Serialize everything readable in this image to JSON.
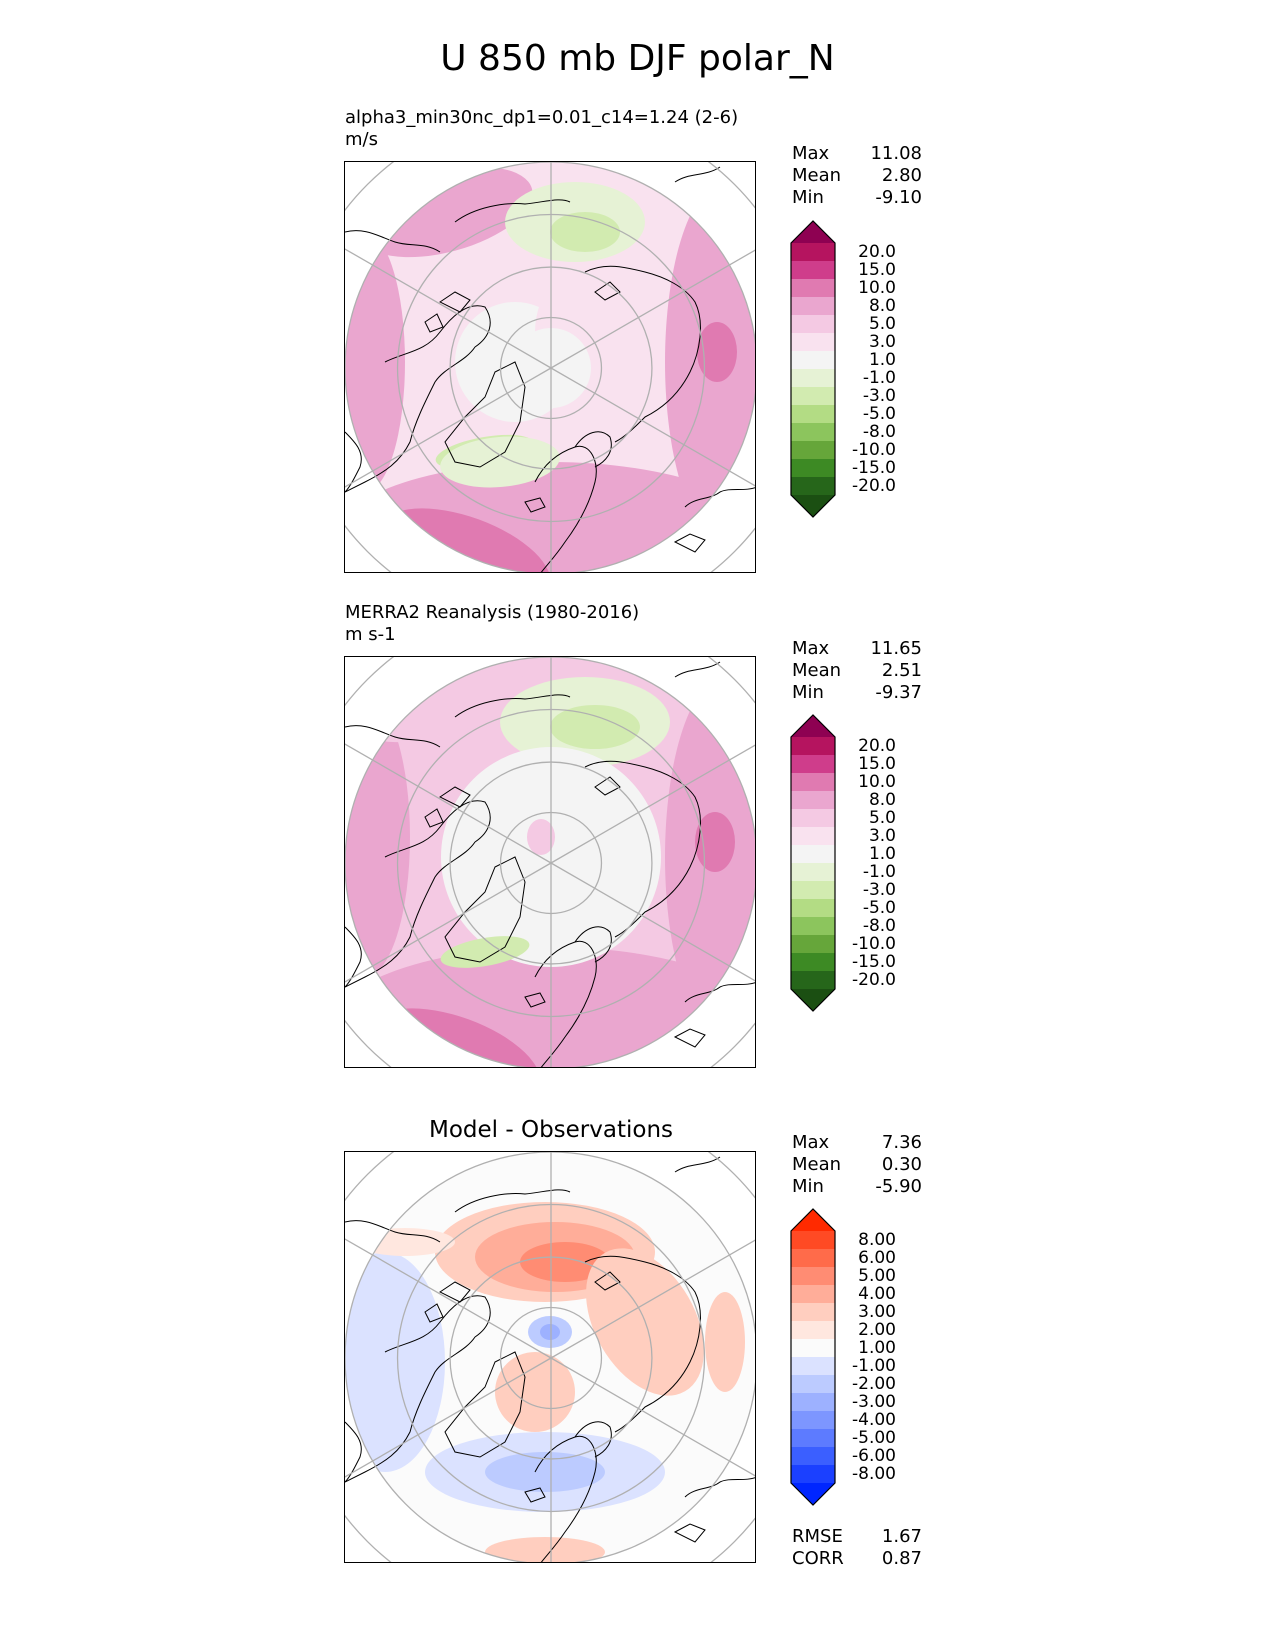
{
  "page": {
    "title": "U 850 mb DJF polar_N"
  },
  "panels": [
    {
      "id": "model",
      "label": "alpha3_min30nc_dp1=0.01_c14=1.24 (2-6)",
      "units": "m/s",
      "stats": {
        "max_label": "Max",
        "max": "11.08",
        "mean_label": "Mean",
        "mean": "2.80",
        "min_label": "Min",
        "min": "-9.10"
      },
      "colorbar_labels": [
        "20.0",
        "15.0",
        "10.0",
        "8.0",
        "5.0",
        "3.0",
        "1.0",
        "-1.0",
        "-3.0",
        "-5.0",
        "-8.0",
        "-10.0",
        "-15.0",
        "-20.0"
      ]
    },
    {
      "id": "obs",
      "label": "MERRA2 Reanalysis (1980-2016)",
      "units": "m s-1",
      "stats": {
        "max_label": "Max",
        "max": "11.65",
        "mean_label": "Mean",
        "mean": "2.51",
        "min_label": "Min",
        "min": "-9.37"
      },
      "colorbar_labels": [
        "20.0",
        "15.0",
        "10.0",
        "8.0",
        "5.0",
        "3.0",
        "1.0",
        "-1.0",
        "-3.0",
        "-5.0",
        "-8.0",
        "-10.0",
        "-15.0",
        "-20.0"
      ]
    },
    {
      "id": "diff",
      "title": "Model - Observations",
      "stats": {
        "max_label": "Max",
        "max": "7.36",
        "mean_label": "Mean",
        "mean": "0.30",
        "min_label": "Min",
        "min": "-5.90"
      },
      "colorbar_labels": [
        "8.00",
        "6.00",
        "5.00",
        "4.00",
        "3.00",
        "2.00",
        "1.00",
        "-1.00",
        "-2.00",
        "-3.00",
        "-4.00",
        "-5.00",
        "-6.00",
        "-8.00"
      ],
      "rmse_label": "RMSE",
      "rmse": "1.67",
      "corr_label": "CORR",
      "corr": "0.87"
    }
  ],
  "colors": {
    "piyg": [
      "#8e0152",
      "#b5145f",
      "#cf3d8b",
      "#e07ab1",
      "#eaa6cf",
      "#f4c9e3",
      "#f9e2ef",
      "#f4f4f4",
      "#e6f2d5",
      "#d2ebb0",
      "#b3dc84",
      "#8cc55d",
      "#66a63a",
      "#3d8a24",
      "#26661a",
      "#1b4f12"
    ],
    "diff": [
      "#ff2a00",
      "#ff4a24",
      "#ff6b4a",
      "#ff8c73",
      "#ffad99",
      "#ffcebf",
      "#ffe7df",
      "#fbfbfb",
      "#dbe2ff",
      "#bccbff",
      "#9db1ff",
      "#7d96ff",
      "#5d7bff",
      "#3b5fff",
      "#1b40ff",
      "#0026ff"
    ],
    "coast": "#000000",
    "grid": "#b0b0b0"
  }
}
